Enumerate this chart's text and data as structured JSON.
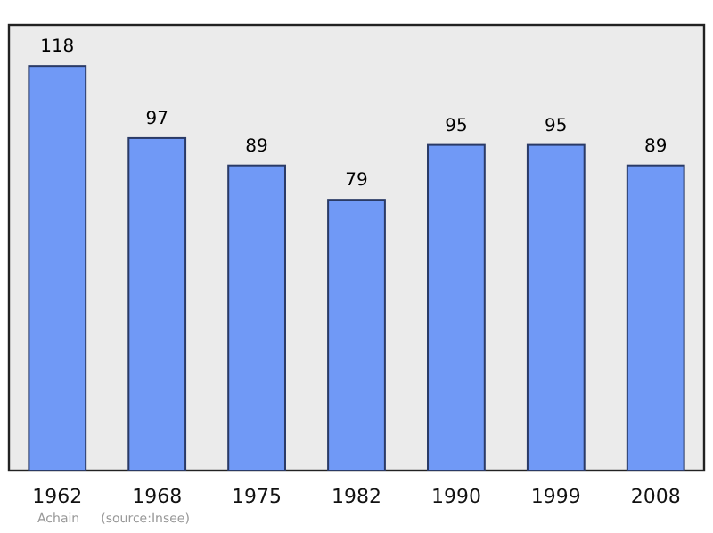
{
  "chart_data": {
    "type": "bar",
    "categories": [
      "1962",
      "1968",
      "1975",
      "1982",
      "1990",
      "1999",
      "2008"
    ],
    "values": [
      118,
      97,
      89,
      79,
      95,
      95,
      89
    ],
    "color": "#7099f6",
    "ylim": [
      0,
      130
    ],
    "tick_labels": "x",
    "data_labels": true,
    "annotations": [
      "Achain",
      "(source:Insee)"
    ]
  }
}
